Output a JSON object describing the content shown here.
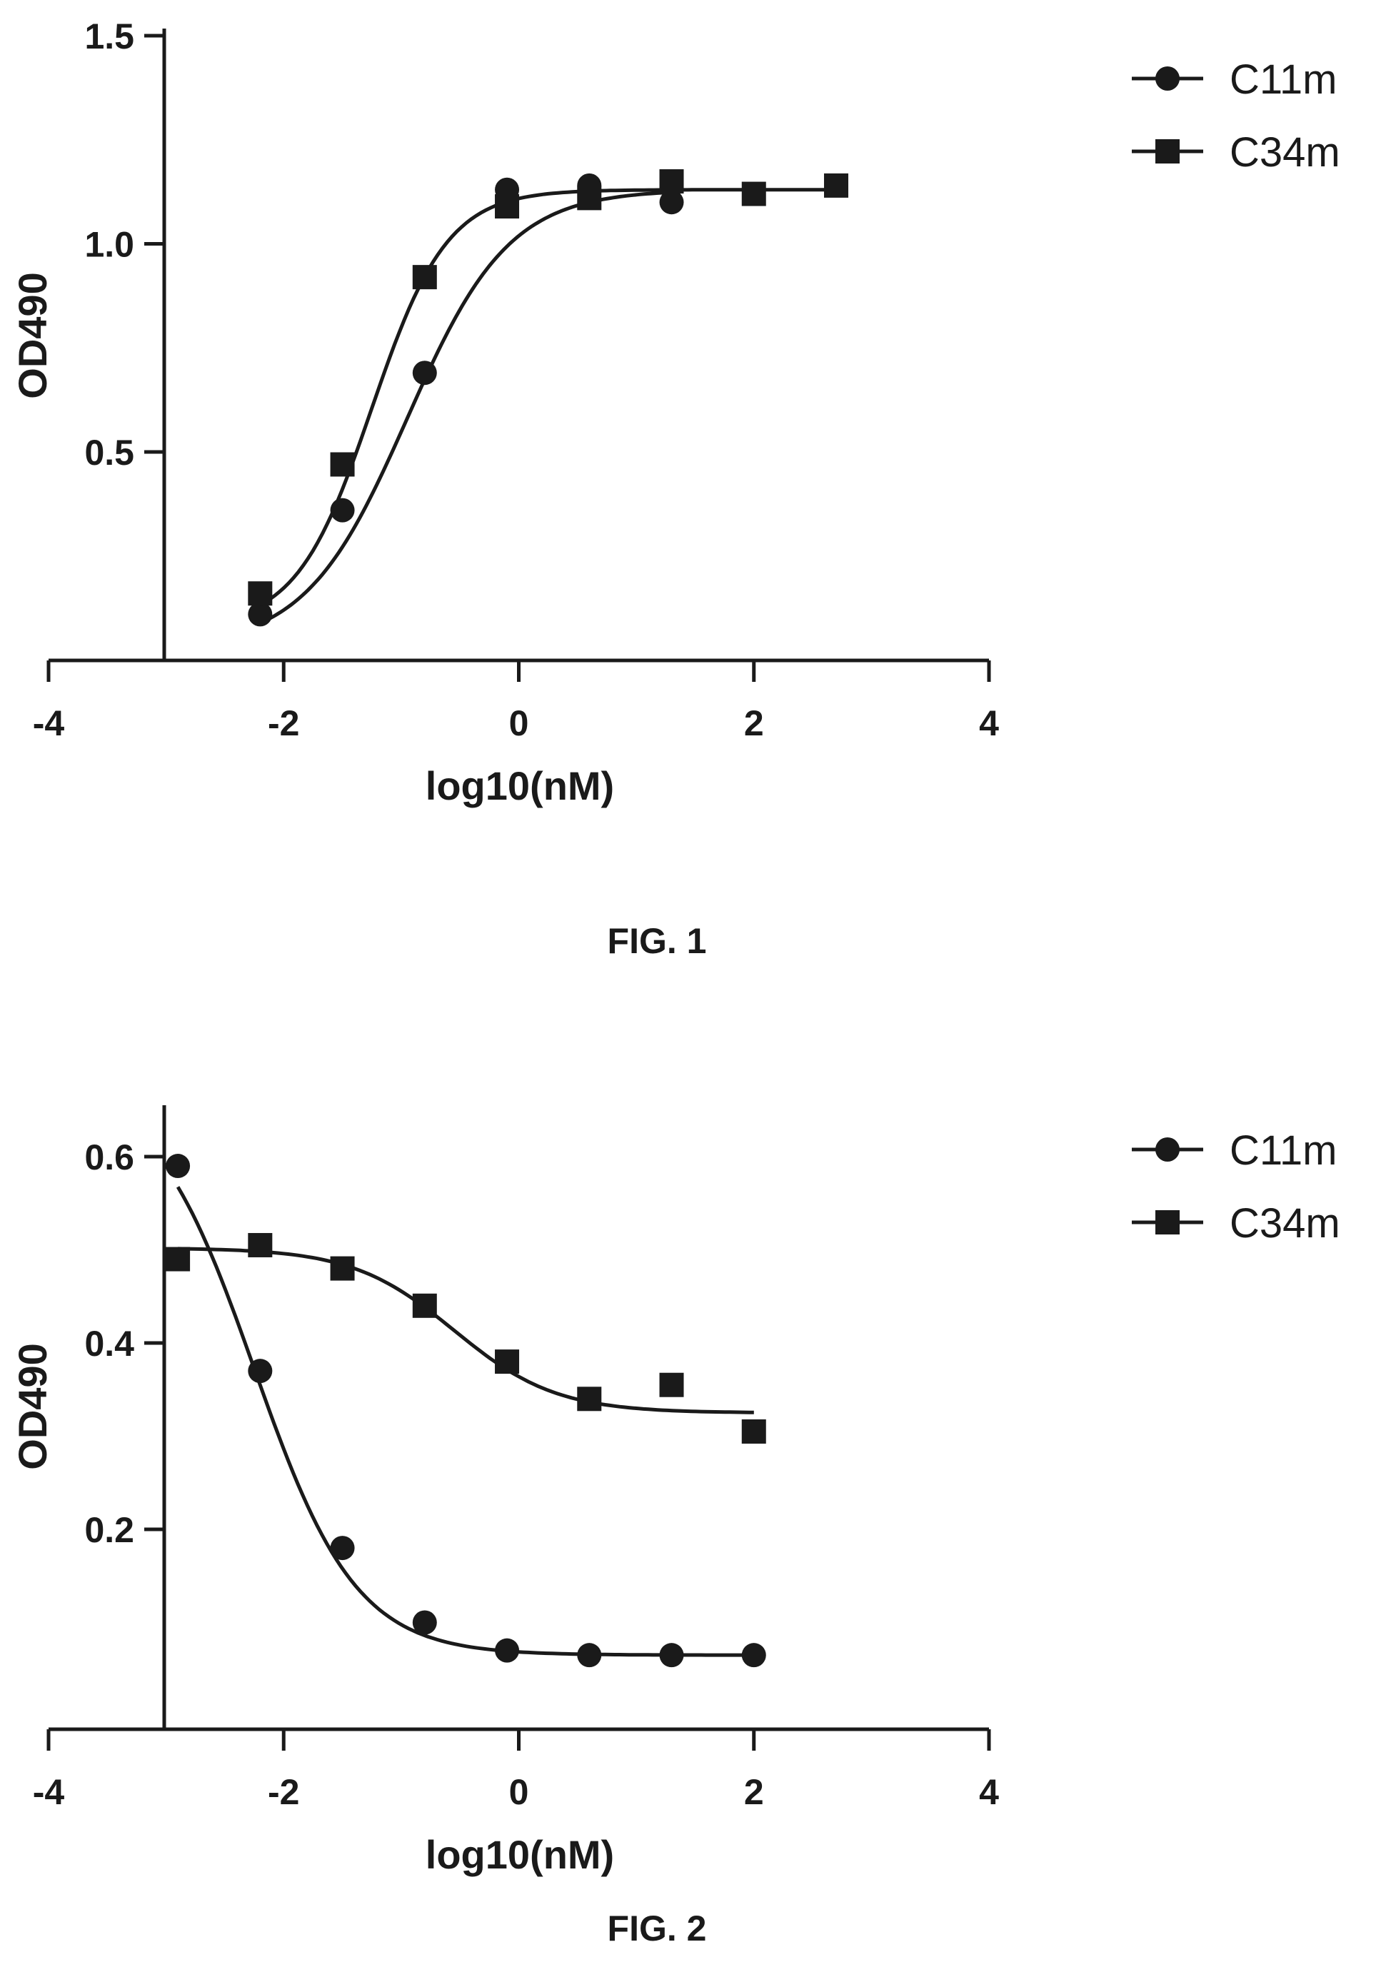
{
  "chart_data": [
    {
      "type": "scatter",
      "caption": "FIG. 1",
      "xlabel": "log10(nM)",
      "ylabel": "OD490",
      "xlim": [
        -4,
        4
      ],
      "ylim": [
        0.0,
        1.5
      ],
      "xticks": [
        -4,
        -2,
        0,
        2,
        4
      ],
      "yticks": [
        0.5,
        1.0,
        1.5
      ],
      "xtick_labels": [
        "-4",
        "-2",
        "0",
        "2",
        "4"
      ],
      "ytick_labels": [
        "0.5",
        "1.0",
        "1.5"
      ],
      "legend_position": "top-right",
      "grid": false,
      "series": [
        {
          "name": "C11m",
          "marker": "circle",
          "x": [
            -2.2,
            -1.5,
            -0.8,
            -0.1,
            0.6,
            1.3
          ],
          "y": [
            0.11,
            0.36,
            0.69,
            1.13,
            1.14,
            1.1
          ],
          "fit": {
            "bottom": 0.03,
            "top": 1.13,
            "log_ec50": -0.95,
            "hill": 1.0
          }
        },
        {
          "name": "C34m",
          "marker": "square",
          "x": [
            -2.2,
            -1.5,
            -0.8,
            -0.1,
            0.6,
            1.3,
            2.0,
            2.7
          ],
          "y": [
            0.16,
            0.47,
            0.92,
            1.09,
            1.11,
            1.15,
            1.12,
            1.14
          ],
          "fit": {
            "bottom": 0.08,
            "top": 1.13,
            "log_ec50": -1.25,
            "hill": 1.35
          }
        }
      ]
    },
    {
      "type": "scatter",
      "caption": "FIG. 2",
      "xlabel": "log10(nM)",
      "ylabel": "OD490",
      "xlim": [
        -4,
        4
      ],
      "ylim": [
        0.0,
        0.65
      ],
      "xticks": [
        -4,
        -2,
        0,
        2,
        4
      ],
      "yticks": [
        0.2,
        0.4,
        0.6
      ],
      "xtick_labels": [
        "-4",
        "-2",
        "0",
        "2",
        "4"
      ],
      "ytick_labels": [
        "0.2",
        "0.4",
        "0.6"
      ],
      "legend_position": "top-right",
      "grid": false,
      "series": [
        {
          "name": "C11m",
          "marker": "circle",
          "x": [
            -2.9,
            -2.2,
            -1.5,
            -0.8,
            -0.1,
            0.6,
            1.3,
            2.0
          ],
          "y": [
            0.59,
            0.37,
            0.18,
            0.1,
            0.07,
            0.065,
            0.065,
            0.065
          ],
          "fit": {
            "bottom": 0.065,
            "top": 0.68,
            "log_ec50": -2.25,
            "hill": -1.0
          }
        },
        {
          "name": "C34m",
          "marker": "square",
          "x": [
            -2.9,
            -2.2,
            -1.5,
            -0.8,
            -0.1,
            0.6,
            1.3,
            2.0
          ],
          "y": [
            0.49,
            0.505,
            0.48,
            0.44,
            0.38,
            0.34,
            0.355,
            0.305
          ],
          "fit": {
            "bottom": 0.325,
            "top": 0.502,
            "log_ec50": -0.55,
            "hill": -1.0
          }
        }
      ]
    }
  ]
}
